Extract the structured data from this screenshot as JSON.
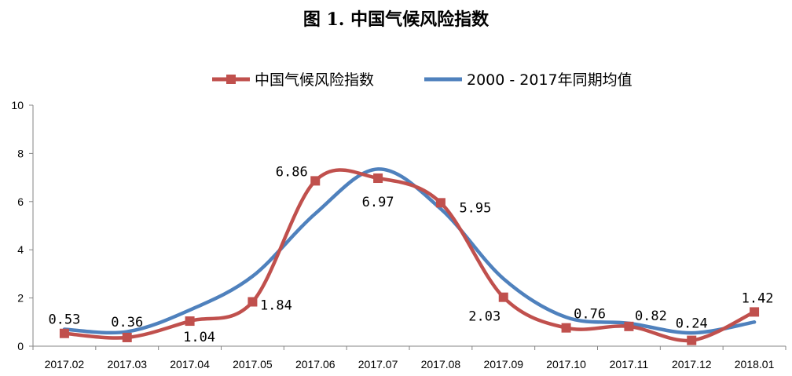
{
  "chart_data": {
    "type": "line",
    "title": "图 1.  中国气候风险指数",
    "categories": [
      "2017.02",
      "2017.03",
      "2017.04",
      "2017.05",
      "2017.06",
      "2017.07",
      "2017.08",
      "2017.09",
      "2017.10",
      "2017.11",
      "2017.12",
      "2018.01"
    ],
    "ylim": [
      0,
      10
    ],
    "yticks": [
      0,
      2,
      4,
      6,
      8,
      10
    ],
    "legend": {
      "position": "top"
    },
    "grid": false,
    "series": [
      {
        "name": "中国气候风险指数",
        "color": "#C0504D",
        "marker": "square",
        "values": [
          0.53,
          0.36,
          1.04,
          1.84,
          6.86,
          6.97,
          5.95,
          2.03,
          0.76,
          0.82,
          0.24,
          1.42
        ],
        "labels": [
          "0.53",
          "0.36",
          "1.04",
          "1.84",
          "6.86",
          "6.97",
          "5.95",
          "2.03",
          "0.76",
          "0.82",
          "0.24",
          "1.42"
        ]
      },
      {
        "name": "2000 - 2017年同期均值",
        "color": "#4F81BD",
        "marker": "none",
        "values": [
          0.7,
          0.6,
          1.5,
          2.9,
          5.5,
          7.35,
          5.7,
          2.8,
          1.2,
          0.95,
          0.55,
          1.0
        ]
      }
    ]
  }
}
